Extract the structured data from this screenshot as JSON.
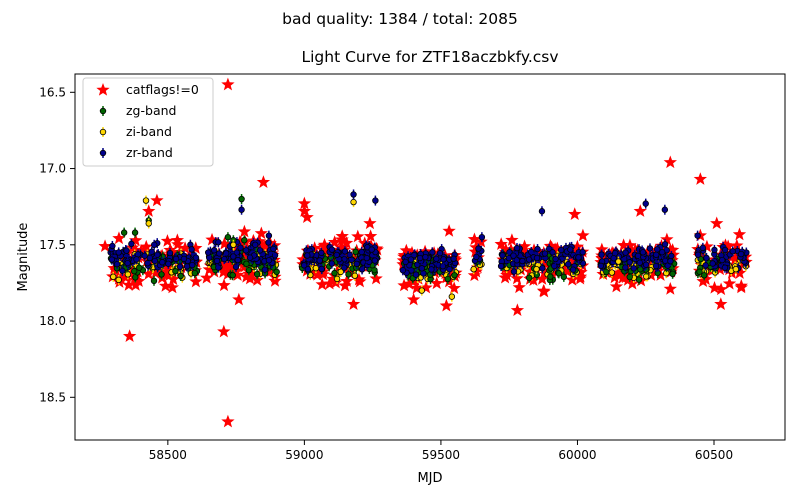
{
  "figure": {
    "suptitle": "bad quality: 1384 / total: 2085"
  },
  "chart_data": {
    "type": "scatter",
    "title": "Light Curve for ZTF18aczbkfy.csv",
    "xlabel": "MJD",
    "ylabel": "Magnitude",
    "xlim": [
      58160,
      60760
    ],
    "ylim": [
      18.78,
      16.38
    ],
    "y_inverted": true,
    "xticks": [
      58500,
      59000,
      59500,
      60000,
      60500
    ],
    "yticks": [
      16.5,
      17.0,
      17.5,
      18.0,
      18.5
    ],
    "xtick_labels": [
      "58500",
      "59000",
      "59500",
      "60000",
      "60500"
    ],
    "ytick_labels": [
      "16.5",
      "17.0",
      "17.5",
      "18.0",
      "18.5"
    ],
    "grid": false,
    "legend_position": "top-left",
    "colors": {
      "catflags": "#ff0000",
      "zg": "#006400",
      "zi": "#ffd700",
      "zr": "#00008b",
      "marker_edge": "#000000"
    },
    "seasons": [
      {
        "x": [
          58290,
          58610
        ],
        "center": 17.62,
        "count": 90
      },
      {
        "x": [
          58640,
          58900
        ],
        "center": 17.6,
        "count": 85
      },
      {
        "x": [
          58990,
          59270
        ],
        "center": 17.6,
        "count": 90
      },
      {
        "x": [
          59360,
          59560
        ],
        "center": 17.64,
        "count": 70
      },
      {
        "x": [
          59620,
          59650
        ],
        "center": 17.58,
        "count": 8
      },
      {
        "x": [
          59720,
          60020
        ],
        "center": 17.62,
        "count": 90
      },
      {
        "x": [
          60080,
          60360
        ],
        "center": 17.62,
        "count": 90
      },
      {
        "x": [
          60440,
          60620
        ],
        "center": 17.62,
        "count": 45
      }
    ],
    "series": [
      {
        "name": "catflags!=0",
        "marker": "star",
        "color": "#ff0000",
        "highlights": [
          {
            "x": 58270,
            "y": 17.51
          },
          {
            "x": 58360,
            "y": 18.1
          },
          {
            "x": 58430,
            "y": 17.28
          },
          {
            "x": 58460,
            "y": 17.21
          },
          {
            "x": 58720,
            "y": 16.45
          },
          {
            "x": 58705,
            "y": 18.07
          },
          {
            "x": 58720,
            "y": 18.66
          },
          {
            "x": 58850,
            "y": 17.09
          },
          {
            "x": 58760,
            "y": 17.86
          },
          {
            "x": 59000,
            "y": 17.23
          },
          {
            "x": 59000,
            "y": 17.28
          },
          {
            "x": 59010,
            "y": 17.32
          },
          {
            "x": 59180,
            "y": 17.89
          },
          {
            "x": 59240,
            "y": 17.36
          },
          {
            "x": 59520,
            "y": 17.9
          },
          {
            "x": 59530,
            "y": 17.41
          },
          {
            "x": 59400,
            "y": 17.86
          },
          {
            "x": 59760,
            "y": 17.47
          },
          {
            "x": 59780,
            "y": 17.93
          },
          {
            "x": 59990,
            "y": 17.3
          },
          {
            "x": 60020,
            "y": 17.44
          },
          {
            "x": 60230,
            "y": 17.28
          },
          {
            "x": 60340,
            "y": 16.96
          },
          {
            "x": 60340,
            "y": 17.79
          },
          {
            "x": 60450,
            "y": 17.07
          },
          {
            "x": 60450,
            "y": 17.44
          },
          {
            "x": 60460,
            "y": 17.74
          },
          {
            "x": 60510,
            "y": 17.36
          },
          {
            "x": 60525,
            "y": 17.89
          },
          {
            "x": 60600,
            "y": 17.77
          }
        ]
      },
      {
        "name": "zg-band",
        "marker": "circle",
        "color": "#006400",
        "highlights": [
          {
            "x": 58340,
            "y": 17.42
          },
          {
            "x": 58380,
            "y": 17.42
          },
          {
            "x": 58430,
            "y": 17.34
          },
          {
            "x": 58720,
            "y": 17.45
          },
          {
            "x": 58740,
            "y": 17.47
          },
          {
            "x": 58770,
            "y": 17.2
          },
          {
            "x": 58780,
            "y": 17.47
          }
        ]
      },
      {
        "name": "zi-band",
        "marker": "circle",
        "color": "#ffd700",
        "highlights": [
          {
            "x": 58300,
            "y": 17.71
          },
          {
            "x": 58320,
            "y": 17.73
          },
          {
            "x": 58420,
            "y": 17.21
          },
          {
            "x": 58430,
            "y": 17.36
          },
          {
            "x": 58740,
            "y": 17.5
          },
          {
            "x": 59180,
            "y": 17.22
          },
          {
            "x": 59430,
            "y": 17.8
          },
          {
            "x": 59540,
            "y": 17.84
          },
          {
            "x": 59620,
            "y": 17.66
          },
          {
            "x": 59850,
            "y": 17.66
          },
          {
            "x": 60150,
            "y": 17.61
          },
          {
            "x": 60580,
            "y": 17.66
          }
        ]
      },
      {
        "name": "zr-band",
        "marker": "circle",
        "color": "#00008b",
        "highlights": [
          {
            "x": 58320,
            "y": 17.55
          },
          {
            "x": 58450,
            "y": 17.5
          },
          {
            "x": 58770,
            "y": 17.27
          },
          {
            "x": 58820,
            "y": 17.5
          },
          {
            "x": 58870,
            "y": 17.44
          },
          {
            "x": 59180,
            "y": 17.17
          },
          {
            "x": 59260,
            "y": 17.21
          },
          {
            "x": 59650,
            "y": 17.45
          },
          {
            "x": 59870,
            "y": 17.28
          },
          {
            "x": 60250,
            "y": 17.23
          },
          {
            "x": 60320,
            "y": 17.27
          },
          {
            "x": 60440,
            "y": 17.44
          },
          {
            "x": 60530,
            "y": 17.6
          }
        ]
      }
    ]
  }
}
